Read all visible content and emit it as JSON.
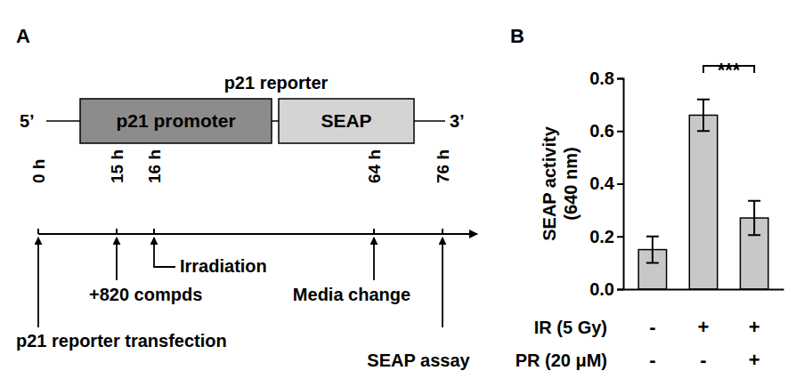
{
  "diagram": {
    "panel": "A",
    "construct": {
      "title": "p21 reporter",
      "five_prime": "5’",
      "three_prime": "3’",
      "parts": [
        {
          "label": "p21 promoter",
          "color": "#8c8c8c"
        },
        {
          "label": "SEAP",
          "color": "#d4d4d4"
        }
      ]
    },
    "timeline": [
      {
        "time": "0 h",
        "event": "p21 reporter transfection"
      },
      {
        "time": "15 h",
        "event": "+820 compds"
      },
      {
        "time": "16 h",
        "event": "Irradiation"
      },
      {
        "time": "64 h",
        "event": "Media change"
      },
      {
        "time": "76 h",
        "event": "SEAP assay"
      }
    ]
  },
  "chart_data": {
    "type": "bar",
    "panel": "B",
    "y_label": [
      "SEAP activity",
      "(640 nm)"
    ],
    "categories": [
      null,
      null,
      null
    ],
    "values": [
      0.15,
      0.66,
      0.27
    ],
    "errors": [
      0.05,
      0.06,
      0.065
    ],
    "color": "#c8c8c8",
    "ylim": [
      0,
      0.8
    ],
    "yticks": [
      {
        "value": 0,
        "label": "0.0"
      },
      {
        "value": 0.2,
        "label": "0.2"
      },
      {
        "value": 0.4,
        "label": "0.4"
      },
      {
        "value": 0.6,
        "label": "0.6"
      },
      {
        "value": 0.8,
        "label": "0.8"
      }
    ],
    "conditions": [
      {
        "label": "IR (5 Gy)",
        "values": [
          "-",
          "+",
          "+"
        ]
      },
      {
        "label": "PR (20 μM)",
        "values": [
          "-",
          "-",
          "+"
        ]
      }
    ],
    "annotations": [
      {
        "text": "***",
        "from": 1,
        "to": 2
      }
    ]
  }
}
